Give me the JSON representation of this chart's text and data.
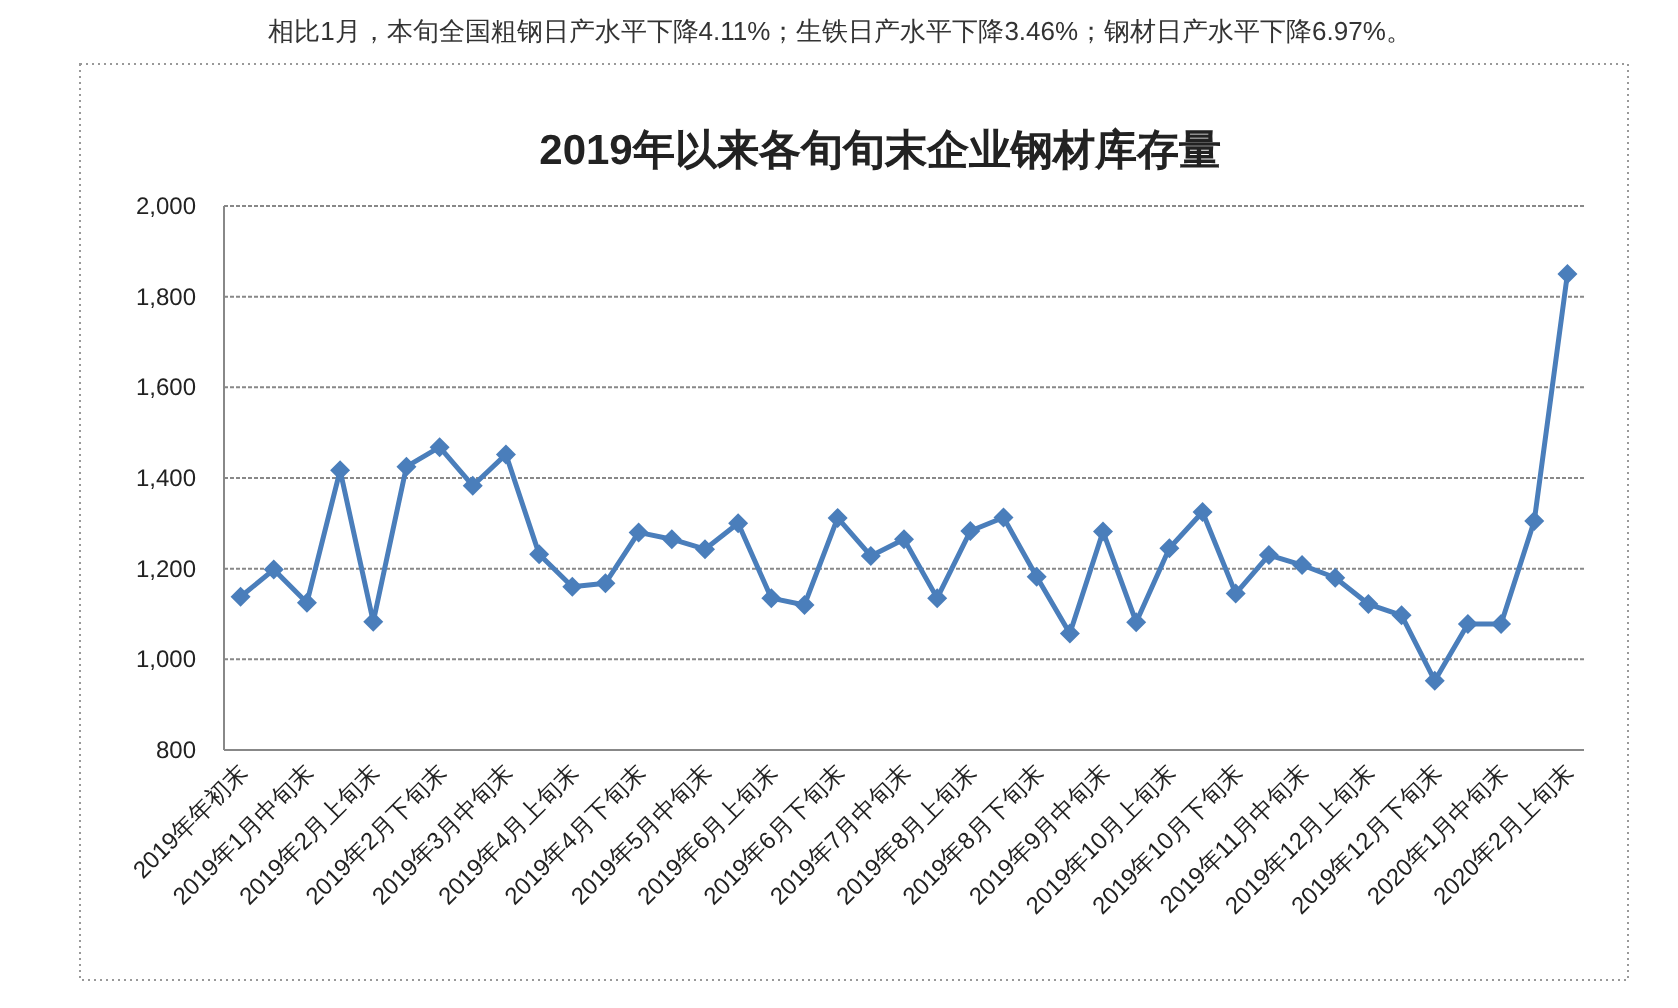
{
  "chart_data": {
    "type": "line",
    "title": "2019年以来各旬旬末企业钢材库存量",
    "annotations": [
      "相比1月，本旬全国粗钢日产水平下降4.11%；生铁日产水平下降3.46%；钢材日产水平下降6.97%。"
    ],
    "categories": [
      "2019年年初末",
      null,
      "2019年1月中旬末",
      null,
      "2019年2月上旬末",
      null,
      "2019年2月下旬末",
      null,
      "2019年3月中旬末",
      null,
      "2019年4月上旬末",
      null,
      "2019年4月下旬末",
      null,
      "2019年5月中旬末",
      null,
      "2019年6月上旬末",
      null,
      "2019年6月下旬末",
      null,
      "2019年7月中旬末",
      null,
      "2019年8月上旬末",
      null,
      "2019年8月下旬末",
      null,
      "2019年9月中旬末",
      null,
      "2019年10月上旬末",
      null,
      "2019年10月下旬末",
      null,
      "2019年11月中旬末",
      null,
      "2019年12月上旬末",
      null,
      "2019年12月下旬末",
      null,
      "2020年1月中旬末",
      null,
      "2020年2月上旬末"
    ],
    "series": [
      {
        "color": "#4a7ebb",
        "values": [
          1138,
          1198,
          1125,
          1417,
          1083,
          1425,
          1468,
          1383,
          1452,
          1232,
          1160,
          1168,
          1280,
          1265,
          1243,
          1300,
          1135,
          1120,
          1312,
          1228,
          1265,
          1135,
          1283,
          1313,
          1182,
          1057,
          1282,
          1082,
          1245,
          1325,
          1145,
          1230,
          1208,
          1180,
          1122,
          1097,
          953,
          1078,
          1078,
          1305,
          1850
        ]
      }
    ],
    "ylim": [
      800,
      2000
    ],
    "yticks": [
      {
        "value": 800,
        "label": "800"
      },
      {
        "value": 1000,
        "label": "1,000"
      },
      {
        "value": 1200,
        "label": "1,200"
      },
      {
        "value": 1400,
        "label": "1,400"
      },
      {
        "value": 1600,
        "label": "1,600"
      },
      {
        "value": 1800,
        "label": "1,800"
      },
      {
        "value": 2000,
        "label": "2,000"
      }
    ],
    "grid": "y",
    "marker": "diamond",
    "line_style": "solid"
  }
}
